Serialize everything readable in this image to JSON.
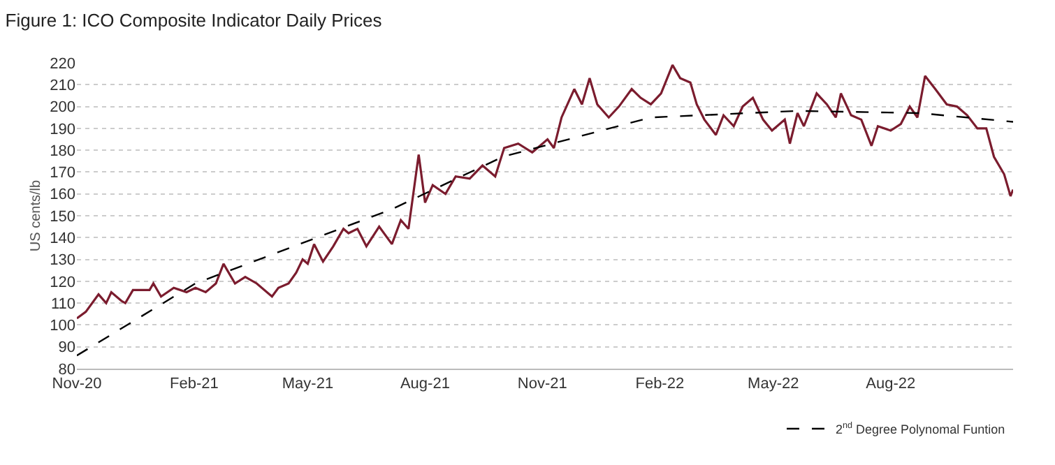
{
  "chart_data": {
    "type": "line",
    "title": "Figure 1: ICO Composite Indicator Daily Prices",
    "ylabel": "US cents/lb",
    "xlim": [
      "2020-11-01",
      "2022-11-05"
    ],
    "xticks": [
      {
        "value": "2020-11-01",
        "label": "Nov-20"
      },
      {
        "value": "2021-02-01",
        "label": "Feb-21"
      },
      {
        "value": "2021-05-01",
        "label": "May-21"
      },
      {
        "value": "2021-08-01",
        "label": "Aug-21"
      },
      {
        "value": "2021-11-01",
        "label": "Nov-21"
      },
      {
        "value": "2022-02-01",
        "label": "Feb-22"
      },
      {
        "value": "2022-05-01",
        "label": "May-22"
      },
      {
        "value": "2022-08-01",
        "label": "Aug-22"
      }
    ],
    "ylim": [
      80,
      220
    ],
    "yticks": [
      80,
      90,
      100,
      110,
      120,
      130,
      140,
      150,
      160,
      170,
      180,
      190,
      200,
      210,
      220
    ],
    "grid": "y",
    "legend": "bottom right",
    "marker": "none",
    "series": [
      {
        "color": "#7b1c2e",
        "line_style": "solid",
        "x": [
          "2020-11-01",
          "2020-11-08",
          "2020-11-18",
          "2020-11-24",
          "2020-11-28",
          "2020-12-06",
          "2020-12-09",
          "2020-12-15",
          "2020-12-28",
          "2020-12-31",
          "2021-01-06",
          "2021-01-16",
          "2021-01-26",
          "2021-02-02",
          "2021-02-10",
          "2021-02-18",
          "2021-02-24",
          "2021-03-05",
          "2021-03-13",
          "2021-03-22",
          "2021-04-03",
          "2021-04-08",
          "2021-04-16",
          "2021-04-22",
          "2021-04-27",
          "2021-05-01",
          "2021-05-06",
          "2021-05-13",
          "2021-05-21",
          "2021-05-29",
          "2021-06-02",
          "2021-06-09",
          "2021-06-16",
          "2021-06-26",
          "2021-07-06",
          "2021-07-13",
          "2021-07-19",
          "2021-07-27",
          "2021-08-01",
          "2021-08-07",
          "2021-08-17",
          "2021-08-25",
          "2021-09-05",
          "2021-09-15",
          "2021-09-25",
          "2021-10-02",
          "2021-10-13",
          "2021-10-24",
          "2021-11-05",
          "2021-11-10",
          "2021-11-16",
          "2021-11-26",
          "2021-12-02",
          "2021-12-08",
          "2021-12-14",
          "2021-12-23",
          "2021-12-31",
          "2022-01-10",
          "2022-01-17",
          "2022-01-25",
          "2022-02-02",
          "2022-02-11",
          "2022-02-17",
          "2022-02-25",
          "2022-03-02",
          "2022-03-08",
          "2022-03-17",
          "2022-03-23",
          "2022-03-31",
          "2022-04-07",
          "2022-04-15",
          "2022-04-23",
          "2022-04-30",
          "2022-05-10",
          "2022-05-14",
          "2022-05-20",
          "2022-05-25",
          "2022-06-04",
          "2022-06-12",
          "2022-06-19",
          "2022-06-23",
          "2022-07-01",
          "2022-07-09",
          "2022-07-17",
          "2022-07-22",
          "2022-08-01",
          "2022-08-09",
          "2022-08-16",
          "2022-08-22",
          "2022-08-28",
          "2022-09-05",
          "2022-09-14",
          "2022-09-22",
          "2022-09-30",
          "2022-10-08",
          "2022-10-15",
          "2022-10-21",
          "2022-10-29",
          "2022-11-03",
          "2022-11-05"
        ],
        "values": [
          103,
          106,
          114,
          110,
          115,
          111,
          110,
          116,
          116,
          119,
          113,
          117,
          115,
          117,
          115,
          119,
          128,
          119,
          122,
          119,
          113,
          117,
          119,
          124,
          130,
          128,
          137,
          129,
          136,
          144,
          142,
          144,
          136,
          145,
          137,
          148,
          144,
          178,
          156,
          164,
          160,
          168,
          167,
          173,
          168,
          181,
          183,
          179,
          185,
          181,
          195,
          208,
          201,
          213,
          201,
          195,
          200,
          208,
          204,
          201,
          206,
          219,
          213,
          211,
          201,
          194,
          187,
          196,
          191,
          200,
          204,
          194,
          189,
          194,
          183,
          197,
          191,
          206,
          201,
          195,
          206,
          196,
          194,
          182,
          191,
          189,
          192,
          200,
          195,
          214,
          208,
          201,
          200,
          196,
          190,
          190,
          177,
          169,
          159,
          162
        ]
      },
      {
        "name": "2$^{nd}$ Degree Polynomal Funtion",
        "color": "#000000",
        "line_style": "dashed",
        "x": [
          "2020-11-01",
          "2021-02-02",
          "2021-04-20",
          "2021-07-06",
          "2021-10-01",
          "2022-01-25",
          "2022-05-20",
          "2022-08-24",
          "2022-11-05"
        ],
        "values": [
          86,
          119,
          136,
          153,
          177,
          195,
          198,
          197,
          193
        ]
      }
    ]
  }
}
